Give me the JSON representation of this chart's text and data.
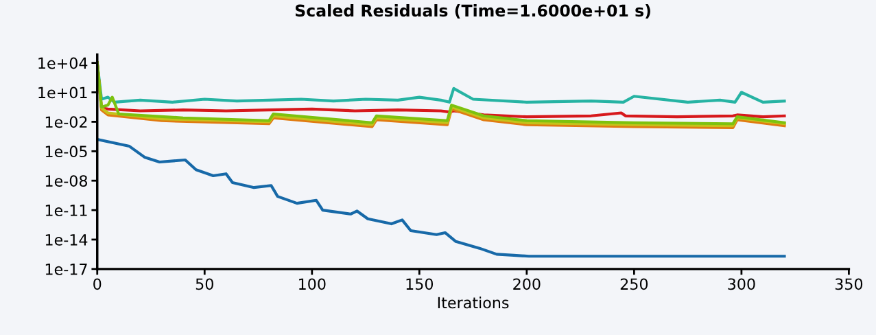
{
  "chart_data": {
    "type": "line",
    "title": "Scaled Residuals (Time=1.6000e+01 s)",
    "xlabel": "Iterations",
    "log": "y",
    "grid": false,
    "legend": false,
    "marker": "none",
    "line_style": "solid",
    "xlim": [
      0,
      350
    ],
    "xticks": [
      0,
      50,
      100,
      150,
      200,
      250,
      300,
      350
    ],
    "ylim": [
      1e-17,
      70000.0
    ],
    "yticks": [
      {
        "value": 10000.0,
        "label": "1e+04"
      },
      {
        "value": 10,
        "label": "1e+01"
      },
      {
        "value": 0.01,
        "label": "1e-02"
      },
      {
        "value": 1e-05,
        "label": "1e-05"
      },
      {
        "value": 1e-08,
        "label": "1e-08"
      },
      {
        "value": 1e-11,
        "label": "1e-11"
      },
      {
        "value": 1e-14,
        "label": "1e-14"
      },
      {
        "value": 1e-17,
        "label": "1e-17"
      }
    ],
    "series": [
      {
        "color": "#26b3a3",
        "x": [
          0,
          2,
          5,
          8,
          20,
          35,
          50,
          65,
          80,
          95,
          110,
          125,
          140,
          150,
          160,
          164,
          166,
          175,
          200,
          230,
          245,
          250,
          275,
          290,
          297,
          300,
          310,
          320
        ],
        "values": [
          10000.0,
          2,
          3.2,
          1,
          1.6,
          1,
          2,
          1.3,
          1.6,
          2,
          1.3,
          2,
          1.6,
          3.2,
          1.6,
          1,
          25,
          2,
          1,
          1.3,
          1,
          4,
          1,
          1.6,
          1,
          10,
          1,
          1.3
        ]
      },
      {
        "color": "#d7191c",
        "x": [
          0,
          2,
          5,
          20,
          40,
          60,
          80,
          100,
          120,
          140,
          160,
          164,
          166,
          180,
          200,
          230,
          244,
          246,
          270,
          296,
          298,
          310,
          320
        ],
        "values": [
          10000.0,
          0.25,
          0.2,
          0.13,
          0.16,
          0.13,
          0.16,
          0.2,
          0.13,
          0.16,
          0.13,
          0.1,
          0.13,
          0.05,
          0.032,
          0.04,
          0.08,
          0.04,
          0.032,
          0.04,
          0.05,
          0.032,
          0.04
        ]
      },
      {
        "color": "#e07b12",
        "x": [
          0,
          2,
          5,
          30,
          80,
          82,
          128,
          130,
          163,
          165,
          180,
          200,
          250,
          296,
          298,
          320
        ],
        "values": [
          10000.0,
          0.16,
          0.05,
          0.013,
          0.0063,
          0.025,
          0.0032,
          0.016,
          0.005,
          0.2,
          0.016,
          0.005,
          0.0032,
          0.0025,
          0.016,
          0.004
        ]
      },
      {
        "color": "#c5c21a",
        "x": [
          0,
          2,
          5,
          30,
          80,
          82,
          128,
          130,
          163,
          165,
          180,
          200,
          250,
          296,
          298,
          320
        ],
        "values": [
          10000.0,
          0.25,
          0.08,
          0.02,
          0.01,
          0.04,
          0.005,
          0.025,
          0.008,
          0.32,
          0.025,
          0.008,
          0.005,
          0.004,
          0.025,
          0.0063
        ]
      },
      {
        "color": "#7dc20f",
        "x": [
          0,
          2,
          5,
          7,
          10,
          40,
          80,
          82,
          128,
          130,
          163,
          165,
          180,
          200,
          250,
          296,
          298,
          320
        ],
        "values": [
          10000.0,
          0.32,
          0.5,
          3.2,
          0.063,
          0.025,
          0.013,
          0.063,
          0.008,
          0.04,
          0.013,
          0.5,
          0.04,
          0.013,
          0.008,
          0.0063,
          0.032,
          0.008
        ]
      },
      {
        "color": "#1769a8",
        "x": [
          0,
          15,
          22,
          29,
          41,
          46,
          54,
          60,
          63,
          73,
          81,
          84,
          93,
          102,
          105,
          118,
          121,
          126,
          137,
          142,
          146,
          158,
          162,
          167,
          178,
          186,
          194,
          201,
          320
        ],
        "values": [
          0.00016,
          3.2e-05,
          2.5e-06,
          8e-07,
          1.3e-06,
          1.3e-07,
          3.2e-08,
          5e-08,
          6.3e-09,
          2e-09,
          3.2e-09,
          2.5e-10,
          5e-11,
          1e-10,
          1e-11,
          4e-12,
          8e-12,
          1.3e-12,
          4e-13,
          1e-12,
          8e-14,
          3.2e-14,
          5e-14,
          6.3e-15,
          1.3e-15,
          3.2e-16,
          2.5e-16,
          2e-16,
          2e-16
        ]
      }
    ]
  }
}
